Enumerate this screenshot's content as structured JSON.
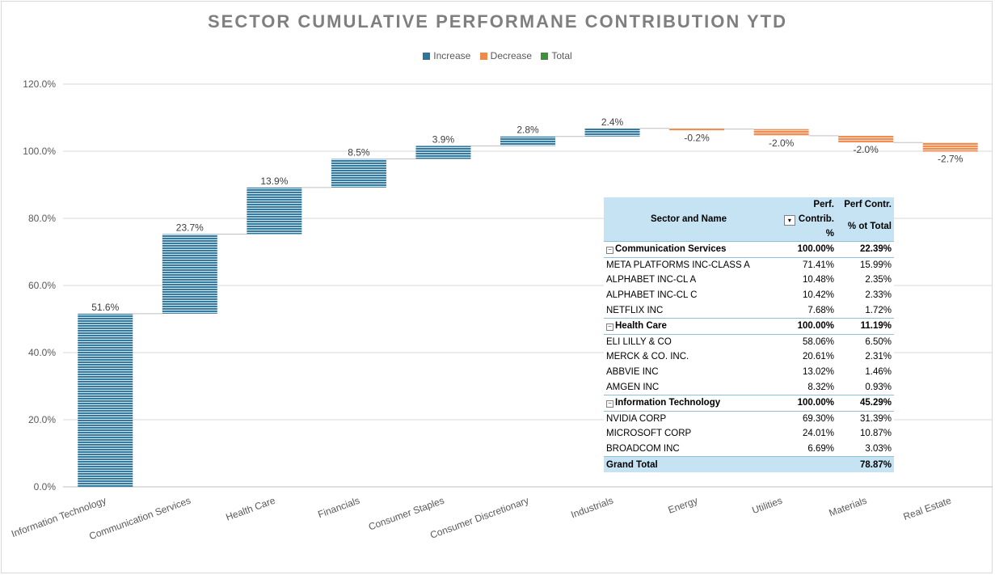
{
  "chart_data": {
    "type": "waterfall",
    "title": "SECTOR CUMULATIVE PERFORMANE CONTRIBUTION YTD",
    "legend": [
      {
        "label": "Increase",
        "color": "#2e7599"
      },
      {
        "label": "Decrease",
        "color": "#ee8a4e"
      },
      {
        "label": "Total",
        "color": "#3f8f3f"
      }
    ],
    "legend_position": "top",
    "categories": [
      "Information Technology",
      "Communication Services",
      "Health Care",
      "Financials",
      "Consumer Staples",
      "Consumer Discretionary",
      "Industrials",
      "Energy",
      "Utilities",
      "Materials",
      "Real Estate"
    ],
    "values": [
      51.6,
      23.7,
      13.9,
      8.5,
      3.9,
      2.8,
      2.4,
      -0.2,
      -2.0,
      -2.0,
      -2.7
    ],
    "data_labels": [
      "51.6%",
      "23.7%",
      "13.9%",
      "8.5%",
      "3.9%",
      "2.8%",
      "2.4%",
      "-0.2%",
      "-2.0%",
      "-2.0%",
      "-2.7%"
    ],
    "ylim": [
      0,
      120
    ],
    "yticks": [
      "0.0%",
      "20.0%",
      "40.0%",
      "60.0%",
      "80.0%",
      "100.0%",
      "120.0%"
    ],
    "grid": true
  },
  "pivot": {
    "header": {
      "col1": "Sector and Name",
      "col2_line1": "Perf.",
      "col2_line2": "Contrib. %",
      "col3_line1": "Perf Contr.",
      "col3_line2": "% ot Total",
      "filter_icon": "filter-sort-icon",
      "collapse_icon": "minus-box-icon"
    },
    "rows": [
      {
        "type": "group",
        "name": "Communication Services",
        "contrib": "100.00%",
        "total": "22.39%"
      },
      {
        "type": "item",
        "name": "META PLATFORMS INC-CLASS A",
        "contrib": "71.41%",
        "total": "15.99%"
      },
      {
        "type": "item",
        "name": "ALPHABET INC-CL A",
        "contrib": "10.48%",
        "total": "2.35%"
      },
      {
        "type": "item",
        "name": "ALPHABET INC-CL C",
        "contrib": "10.42%",
        "total": "2.33%"
      },
      {
        "type": "item",
        "name": "NETFLIX INC",
        "contrib": "7.68%",
        "total": "1.72%"
      },
      {
        "type": "group",
        "name": "Health Care",
        "contrib": "100.00%",
        "total": "11.19%"
      },
      {
        "type": "item",
        "name": "ELI LILLY & CO",
        "contrib": "58.06%",
        "total": "6.50%"
      },
      {
        "type": "item",
        "name": "MERCK & CO. INC.",
        "contrib": "20.61%",
        "total": "2.31%"
      },
      {
        "type": "item",
        "name": "ABBVIE INC",
        "contrib": "13.02%",
        "total": "1.46%"
      },
      {
        "type": "item",
        "name": "AMGEN INC",
        "contrib": "8.32%",
        "total": "0.93%"
      },
      {
        "type": "group",
        "name": "Information Technology",
        "contrib": "100.00%",
        "total": "45.29%"
      },
      {
        "type": "item",
        "name": "NVIDIA CORP",
        "contrib": "69.30%",
        "total": "31.39%"
      },
      {
        "type": "item",
        "name": "MICROSOFT CORP",
        "contrib": "24.01%",
        "total": "10.87%"
      },
      {
        "type": "item",
        "name": "BROADCOM INC",
        "contrib": "6.69%",
        "total": "3.03%"
      }
    ],
    "grand_total": {
      "label": "Grand Total",
      "contrib": "",
      "total": "78.87%"
    }
  }
}
